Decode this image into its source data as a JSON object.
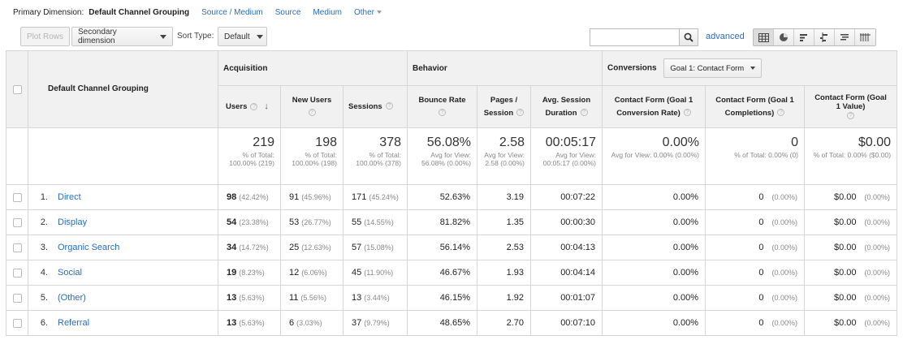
{
  "primary_dimension": {
    "label": "Primary Dimension:",
    "active": "Default Channel Grouping",
    "links": [
      "Source / Medium",
      "Source",
      "Medium",
      "Other"
    ]
  },
  "toolbar": {
    "plot_rows": "Plot Rows",
    "secondary_dimension": "Secondary dimension",
    "sort_type_label": "Sort Type:",
    "sort_type_value": "Default",
    "search_value": "",
    "advanced": "advanced"
  },
  "table": {
    "dimension_header": "Default Channel Grouping",
    "groups": {
      "acquisition": "Acquisition",
      "behavior": "Behavior",
      "conversions": "Conversions",
      "goal_select": "Goal 1: Contact Form"
    },
    "columns": {
      "users": "Users",
      "new_users": "New Users",
      "sessions": "Sessions",
      "bounce_rate": "Bounce Rate",
      "pages_session": "Pages / Session",
      "avg_duration": "Avg. Session Duration",
      "conv_rate": "Contact Form (Goal 1 Conversion Rate)",
      "completions": "Contact Form (Goal 1 Completions)",
      "value": "Contact Form (Goal 1 Value)"
    },
    "totals": {
      "users": {
        "big": "219",
        "sub": "% of Total: 100.00% (219)"
      },
      "new_users": {
        "big": "198",
        "sub": "% of Total: 100.00% (198)"
      },
      "sessions": {
        "big": "378",
        "sub": "% of Total: 100.00% (378)"
      },
      "bounce_rate": {
        "big": "56.08%",
        "sub": "Avg for View: 56.08% (0.00%)"
      },
      "pages_session": {
        "big": "2.58",
        "sub": "Avg for View: 2.58 (0.00%)"
      },
      "avg_duration": {
        "big": "00:05:17",
        "sub": "Avg for View: 00:05:17 (0.00%)"
      },
      "conv_rate": {
        "big": "0.00%",
        "sub": "Avg for View: 0.00% (0.00%)"
      },
      "completions": {
        "big": "0",
        "sub": "% of Total: 0.00% (0)"
      },
      "value": {
        "big": "$0.00",
        "sub": "% of Total: 0.00% ($0.00)"
      }
    },
    "rows": [
      {
        "idx": "1.",
        "name": "Direct",
        "users": "98",
        "users_pct": "(42.42%)",
        "new_users": "91",
        "new_users_pct": "(45.96%)",
        "sessions": "171",
        "sessions_pct": "(45.24%)",
        "bounce": "52.63%",
        "pages": "3.19",
        "duration": "00:07:22",
        "conv": "0.00%",
        "comp": "0",
        "comp_pct": "(0.00%)",
        "value": "$0.00",
        "value_pct": "(0.00%)"
      },
      {
        "idx": "2.",
        "name": "Display",
        "users": "54",
        "users_pct": "(23.38%)",
        "new_users": "53",
        "new_users_pct": "(26.77%)",
        "sessions": "55",
        "sessions_pct": "(14.55%)",
        "bounce": "81.82%",
        "pages": "1.35",
        "duration": "00:00:30",
        "conv": "0.00%",
        "comp": "0",
        "comp_pct": "(0.00%)",
        "value": "$0.00",
        "value_pct": "(0.00%)"
      },
      {
        "idx": "3.",
        "name": "Organic Search",
        "users": "34",
        "users_pct": "(14.72%)",
        "new_users": "25",
        "new_users_pct": "(12.63%)",
        "sessions": "57",
        "sessions_pct": "(15.08%)",
        "bounce": "56.14%",
        "pages": "2.53",
        "duration": "00:04:13",
        "conv": "0.00%",
        "comp": "0",
        "comp_pct": "(0.00%)",
        "value": "$0.00",
        "value_pct": "(0.00%)"
      },
      {
        "idx": "4.",
        "name": "Social",
        "users": "19",
        "users_pct": "(8.23%)",
        "new_users": "12",
        "new_users_pct": "(6.06%)",
        "sessions": "45",
        "sessions_pct": "(11.90%)",
        "bounce": "46.67%",
        "pages": "1.93",
        "duration": "00:04:14",
        "conv": "0.00%",
        "comp": "0",
        "comp_pct": "(0.00%)",
        "value": "$0.00",
        "value_pct": "(0.00%)"
      },
      {
        "idx": "5.",
        "name": "(Other)",
        "users": "13",
        "users_pct": "(5.63%)",
        "new_users": "11",
        "new_users_pct": "(5.56%)",
        "sessions": "13",
        "sessions_pct": "(3.44%)",
        "bounce": "46.15%",
        "pages": "1.92",
        "duration": "00:01:07",
        "conv": "0.00%",
        "comp": "0",
        "comp_pct": "(0.00%)",
        "value": "$0.00",
        "value_pct": "(0.00%)"
      },
      {
        "idx": "6.",
        "name": "Referral",
        "users": "13",
        "users_pct": "(5.63%)",
        "new_users": "6",
        "new_users_pct": "(3.03%)",
        "sessions": "37",
        "sessions_pct": "(9.79%)",
        "bounce": "48.65%",
        "pages": "2.70",
        "duration": "00:07:10",
        "conv": "0.00%",
        "comp": "0",
        "comp_pct": "(0.00%)",
        "value": "$0.00",
        "value_pct": "(0.00%)"
      }
    ]
  },
  "icons": {
    "search": "search-icon",
    "views": [
      "table-view-icon",
      "pie-view-icon",
      "performance-view-icon",
      "comparison-view-icon",
      "term-cloud-icon",
      "pivot-view-icon"
    ]
  }
}
